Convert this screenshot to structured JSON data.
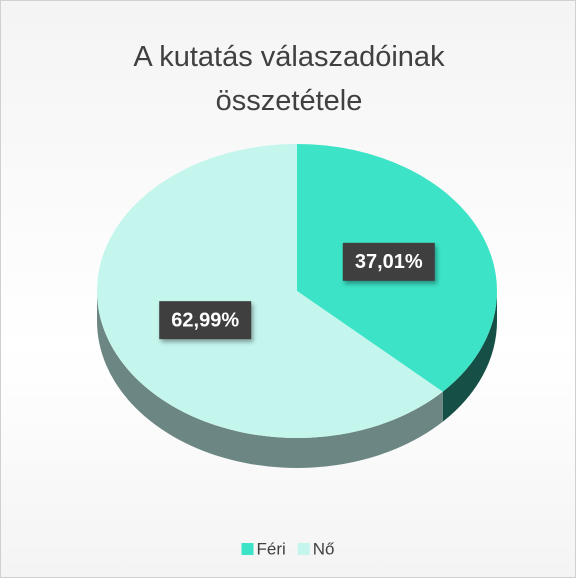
{
  "chart_data": {
    "type": "pie",
    "title": "A kutatás válaszadóinak összetétele",
    "categories": [
      "Féri",
      "Nő"
    ],
    "values": [
      37.01,
      62.99
    ],
    "value_labels": [
      "37,01%",
      "62,99%"
    ],
    "colors": [
      "#3ce3c6",
      "#c4f6ee"
    ],
    "legend": "bottom"
  }
}
